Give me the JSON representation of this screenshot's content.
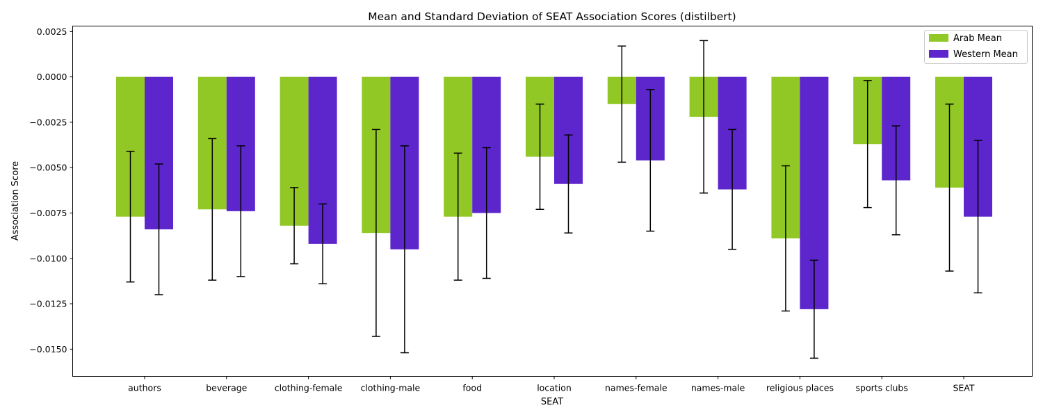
{
  "chart_data": {
    "type": "bar",
    "title": "Mean and Standard Deviation of SEAT Association Scores (distilbert)",
    "xlabel": "SEAT",
    "ylabel": "Association Score",
    "ylim": [
      -0.0165,
      0.0028
    ],
    "yticks": [
      0.0025,
      0.0,
      -0.0025,
      -0.005,
      -0.0075,
      -0.01,
      -0.0125,
      -0.015
    ],
    "ytick_labels": [
      "0.0025",
      "0.0000",
      "−0.0025",
      "−0.0050",
      "−0.0075",
      "−0.0100",
      "−0.0125",
      "−0.0150"
    ],
    "grid": false,
    "legend_position": "top-right",
    "categories": [
      "authors",
      "beverage",
      "clothing-female",
      "clothing-male",
      "food",
      "location",
      "names-female",
      "names-male",
      "religious places",
      "sports clubs",
      "SEAT"
    ],
    "series": [
      {
        "name": "Arab Mean",
        "color": "#92c825",
        "values": [
          -0.0077,
          -0.0073,
          -0.0082,
          -0.0086,
          -0.0077,
          -0.0044,
          -0.0015,
          -0.0022,
          -0.0089,
          -0.0037,
          -0.0061
        ],
        "errors": [
          0.0036,
          0.0039,
          0.0021,
          0.0057,
          0.0035,
          0.0029,
          0.0032,
          0.0042,
          0.004,
          0.0035,
          0.0046
        ]
      },
      {
        "name": "Western Mean",
        "color": "#5c26cc",
        "values": [
          -0.0084,
          -0.0074,
          -0.0092,
          -0.0095,
          -0.0075,
          -0.0059,
          -0.0046,
          -0.0062,
          -0.0128,
          -0.0057,
          -0.0077
        ],
        "errors": [
          0.0036,
          0.0036,
          0.0022,
          0.0057,
          0.0036,
          0.0027,
          0.0039,
          0.0033,
          0.0027,
          0.003,
          0.0042
        ]
      }
    ]
  }
}
